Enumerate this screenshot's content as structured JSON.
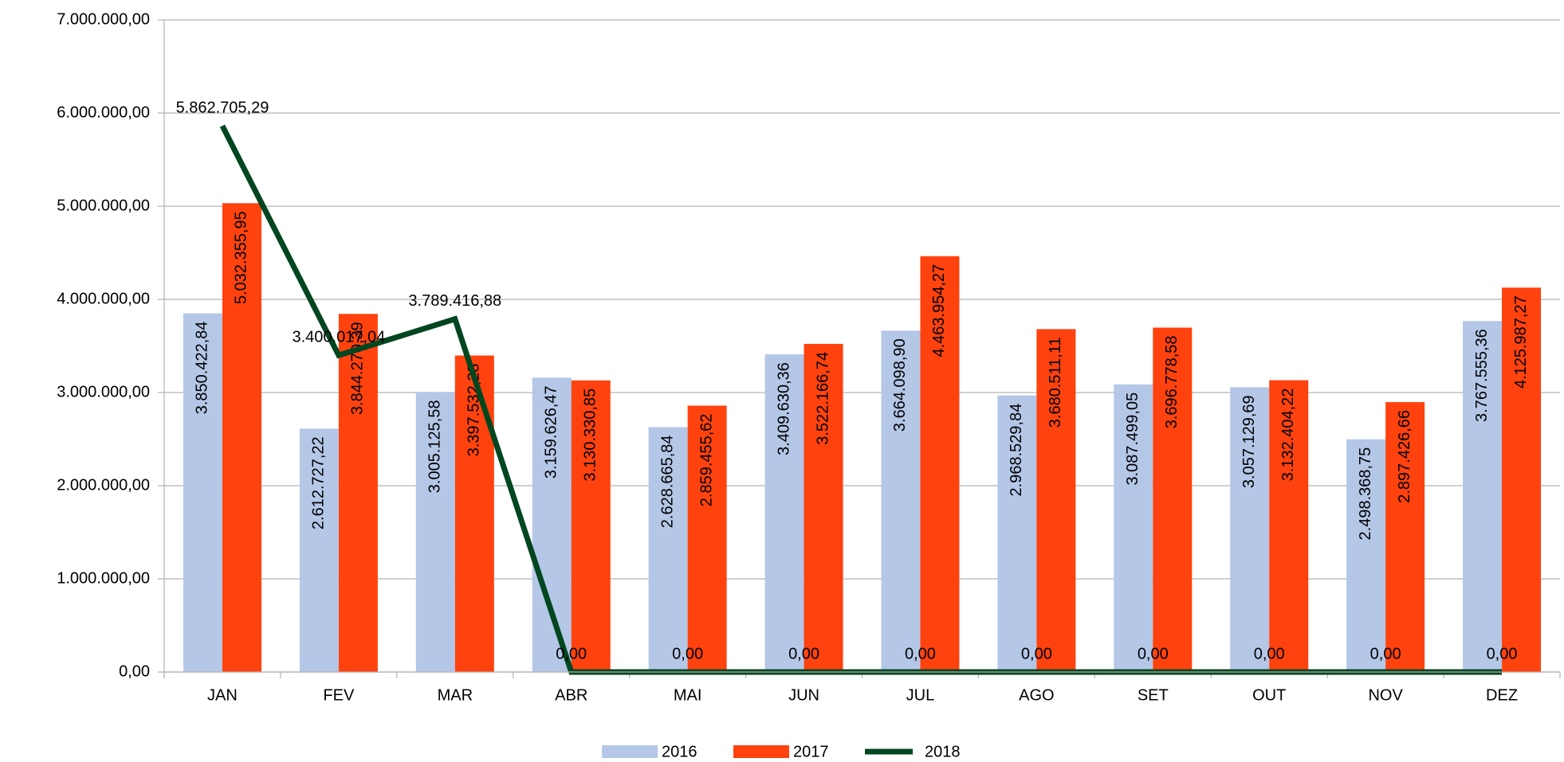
{
  "chart_data": {
    "type": "bar",
    "categories": [
      "JAN",
      "FEV",
      "MAR",
      "ABR",
      "MAI",
      "JUN",
      "JUL",
      "AGO",
      "SET",
      "OUT",
      "NOV",
      "DEZ"
    ],
    "series": [
      {
        "name": "2016",
        "type": "bar",
        "color": "#b4c7e7",
        "values": [
          3850422.84,
          2612727.22,
          3005125.58,
          3159626.47,
          2628665.84,
          3409630.36,
          3664098.9,
          2968529.84,
          3087499.05,
          3057129.69,
          2498368.75,
          3767555.36
        ],
        "value_labels": [
          "3.850.422,84",
          "2.612.727,22",
          "3.005.125,58",
          "3.159.626,47",
          "2.628.665,84",
          "3.409.630,36",
          "3.664.098,90",
          "2.968.529,84",
          "3.087.499,05",
          "3.057.129,69",
          "2.498.368,75",
          "3.767.555,36"
        ]
      },
      {
        "name": "2017",
        "type": "bar",
        "color": "#ff420e",
        "values": [
          5032355.95,
          3844270.39,
          3397532.28,
          3130330.85,
          2859455.62,
          3522166.74,
          4463954.27,
          3680511.11,
          3696778.58,
          3132404.22,
          2897426.66,
          4125987.27
        ],
        "value_labels": [
          "5.032.355,95",
          "3.844.270,39",
          "3.397.532,28",
          "3.130.330,85",
          "2.859.455,62",
          "3.522.166,74",
          "4.463.954,27",
          "3.680.511,11",
          "3.696.778,58",
          "3.132.404,22",
          "2.897.426,66",
          "4.125.987,27"
        ]
      },
      {
        "name": "2018",
        "type": "line",
        "color": "#00461f",
        "values": [
          5862705.29,
          3400017.04,
          3789416.88,
          0,
          0,
          0,
          0,
          0,
          0,
          0,
          0,
          0
        ],
        "value_labels": [
          "5.862.705,29",
          "3.400.017,04",
          "3.789.416,88",
          "0,00",
          "0,00",
          "0,00",
          "0,00",
          "0,00",
          "0,00",
          "0,00",
          "0,00",
          "0,00"
        ]
      }
    ],
    "ylim": [
      0,
      7000000
    ],
    "yticks": [
      {
        "value": 0,
        "label": "0,00"
      },
      {
        "value": 1000000,
        "label": "1.000.000,00"
      },
      {
        "value": 2000000,
        "label": "2.000.000,00"
      },
      {
        "value": 3000000,
        "label": "3.000.000,00"
      },
      {
        "value": 4000000,
        "label": "4.000.000,00"
      },
      {
        "value": 5000000,
        "label": "5.000.000,00"
      },
      {
        "value": 6000000,
        "label": "6.000.000,00"
      },
      {
        "value": 7000000,
        "label": "7.000.000,00"
      }
    ],
    "grid": true
  }
}
